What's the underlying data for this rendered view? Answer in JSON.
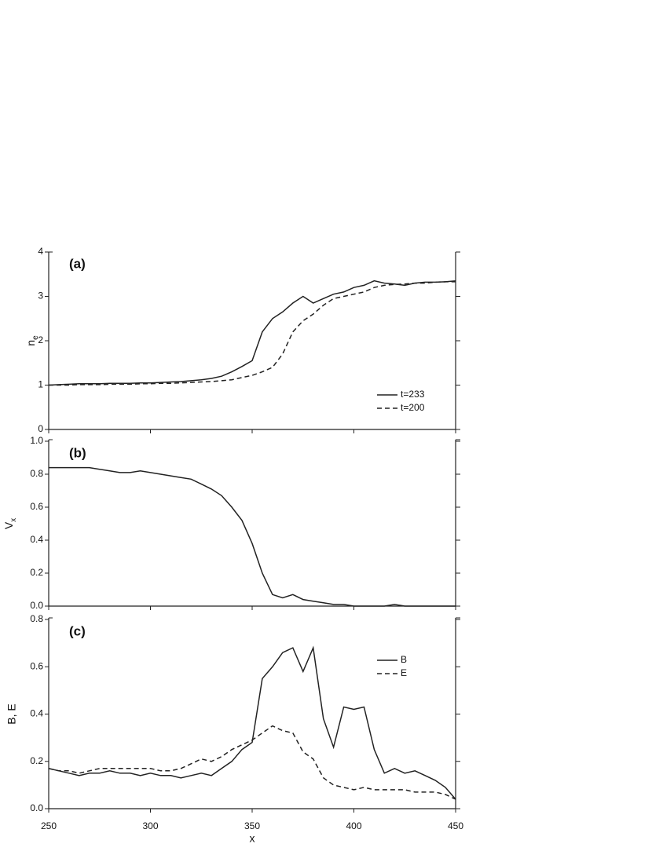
{
  "chart_data": [
    {
      "type": "line",
      "panel_label": "(a)",
      "ylabel": {
        "base": "n",
        "sub": "e"
      },
      "xlim": [
        250,
        450
      ],
      "ylim": [
        0,
        4
      ],
      "yticks": [
        0,
        1,
        2,
        3,
        4
      ],
      "x": [
        250,
        255,
        260,
        265,
        270,
        275,
        280,
        285,
        290,
        295,
        300,
        305,
        310,
        315,
        320,
        325,
        330,
        335,
        340,
        345,
        350,
        355,
        360,
        365,
        370,
        375,
        380,
        385,
        390,
        395,
        400,
        405,
        410,
        415,
        420,
        425,
        430,
        435,
        440,
        445,
        450
      ],
      "legend": "lower right",
      "series": [
        {
          "name": "t=233",
          "color": "#222222",
          "style": "solid",
          "values": [
            1.0,
            1.01,
            1.02,
            1.03,
            1.03,
            1.03,
            1.04,
            1.04,
            1.04,
            1.05,
            1.05,
            1.06,
            1.07,
            1.08,
            1.1,
            1.12,
            1.15,
            1.2,
            1.3,
            1.42,
            1.55,
            2.2,
            2.5,
            2.65,
            2.85,
            3.0,
            2.85,
            2.95,
            3.05,
            3.1,
            3.2,
            3.25,
            3.35,
            3.3,
            3.28,
            3.25,
            3.3,
            3.32,
            3.32,
            3.33,
            3.35
          ]
        },
        {
          "name": "t=200",
          "color": "#222222",
          "style": "dashed",
          "values": [
            1.0,
            1.0,
            1.0,
            1.01,
            1.01,
            1.01,
            1.02,
            1.02,
            1.02,
            1.03,
            1.03,
            1.04,
            1.04,
            1.05,
            1.06,
            1.07,
            1.08,
            1.1,
            1.12,
            1.17,
            1.22,
            1.3,
            1.4,
            1.7,
            2.2,
            2.45,
            2.6,
            2.8,
            2.95,
            3.0,
            3.05,
            3.1,
            3.2,
            3.25,
            3.27,
            3.28,
            3.3,
            3.3,
            3.32,
            3.33,
            3.33
          ]
        }
      ]
    },
    {
      "type": "line",
      "panel_label": "(b)",
      "ylabel": {
        "base": "V",
        "sub": "x"
      },
      "xlim": [
        250,
        450
      ],
      "ylim": [
        0,
        1
      ],
      "yticks": [
        {
          "value": 0,
          "label": "0.0"
        },
        0.2,
        0.4,
        0.6,
        0.8,
        {
          "value": 1,
          "label": "1.0"
        }
      ],
      "x": [
        250,
        255,
        260,
        265,
        270,
        275,
        280,
        285,
        290,
        295,
        300,
        305,
        310,
        315,
        320,
        325,
        330,
        335,
        340,
        345,
        350,
        355,
        360,
        365,
        370,
        375,
        380,
        385,
        390,
        395,
        400,
        405,
        410,
        415,
        420,
        425,
        430,
        435,
        440,
        445,
        450
      ],
      "color": "#222222",
      "values": [
        0.84,
        0.84,
        0.84,
        0.84,
        0.84,
        0.83,
        0.82,
        0.81,
        0.81,
        0.82,
        0.81,
        0.8,
        0.79,
        0.78,
        0.77,
        0.74,
        0.71,
        0.67,
        0.6,
        0.52,
        0.38,
        0.2,
        0.07,
        0.05,
        0.07,
        0.04,
        0.03,
        0.02,
        0.01,
        0.01,
        0.0,
        0.0,
        0.0,
        0.0,
        0.01,
        0.0,
        0.0,
        0.0,
        0.0,
        0.0,
        0.0
      ]
    },
    {
      "type": "line",
      "panel_label": "(c)",
      "ylabel": "B, E",
      "xlabel": "x",
      "xlim": [
        250,
        450
      ],
      "xticks": [
        250,
        300,
        350,
        400,
        450
      ],
      "ylim": [
        0,
        0.8
      ],
      "yticks": [
        {
          "value": 0,
          "label": "0.0"
        },
        0.2,
        0.4,
        0.6,
        0.8
      ],
      "x": [
        250,
        255,
        260,
        265,
        270,
        275,
        280,
        285,
        290,
        295,
        300,
        305,
        310,
        315,
        320,
        325,
        330,
        335,
        340,
        345,
        350,
        355,
        360,
        365,
        370,
        375,
        380,
        385,
        390,
        395,
        400,
        405,
        410,
        415,
        420,
        425,
        430,
        435,
        440,
        445,
        450
      ],
      "legend": "upper right",
      "series": [
        {
          "name": "B",
          "color": "#222222",
          "style": "solid",
          "values": [
            0.17,
            0.16,
            0.15,
            0.14,
            0.15,
            0.15,
            0.16,
            0.15,
            0.15,
            0.14,
            0.15,
            0.14,
            0.14,
            0.13,
            0.14,
            0.15,
            0.14,
            0.17,
            0.2,
            0.25,
            0.28,
            0.55,
            0.6,
            0.66,
            0.68,
            0.58,
            0.68,
            0.38,
            0.26,
            0.43,
            0.42,
            0.43,
            0.25,
            0.15,
            0.17,
            0.15,
            0.16,
            0.14,
            0.12,
            0.09,
            0.04
          ]
        },
        {
          "name": "E",
          "color": "#222222",
          "style": "dashed",
          "values": [
            0.17,
            0.16,
            0.16,
            0.15,
            0.16,
            0.17,
            0.17,
            0.17,
            0.17,
            0.17,
            0.17,
            0.16,
            0.16,
            0.17,
            0.19,
            0.21,
            0.2,
            0.22,
            0.25,
            0.27,
            0.29,
            0.32,
            0.35,
            0.33,
            0.32,
            0.24,
            0.21,
            0.13,
            0.1,
            0.09,
            0.08,
            0.09,
            0.08,
            0.08,
            0.08,
            0.08,
            0.07,
            0.07,
            0.07,
            0.06,
            0.04
          ]
        }
      ]
    }
  ]
}
